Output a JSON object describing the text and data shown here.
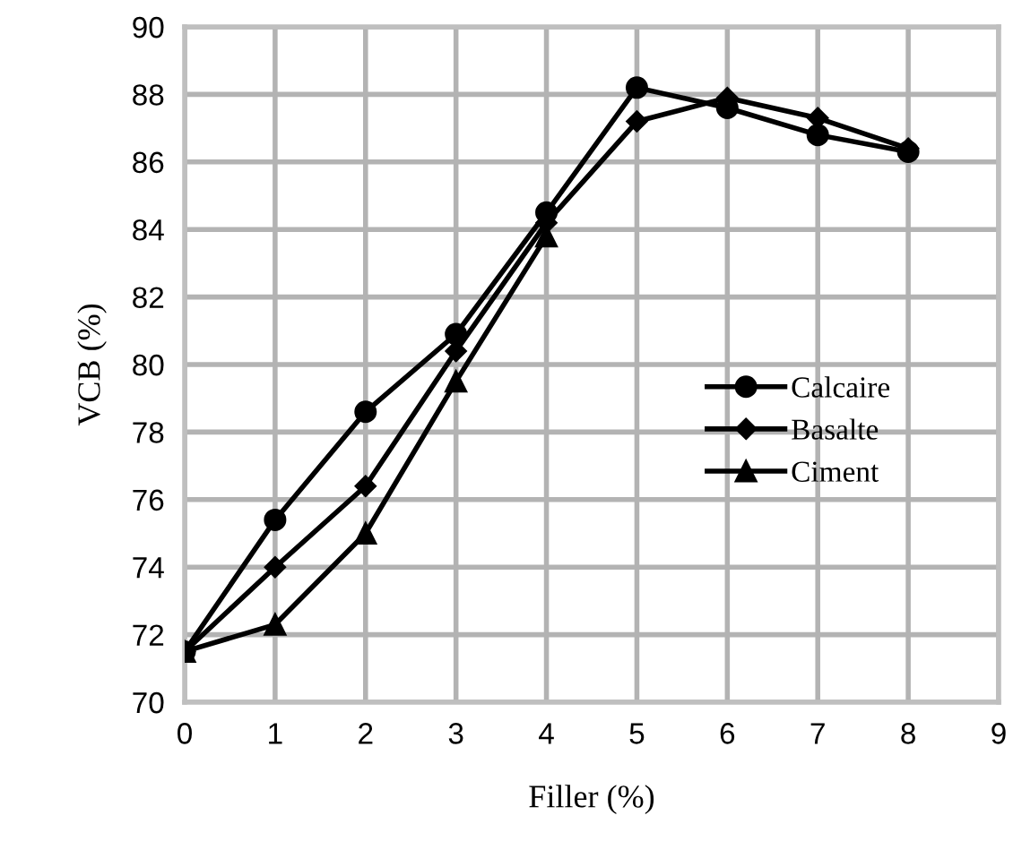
{
  "chart_data": {
    "type": "line",
    "xlabel": "Filler (%)",
    "ylabel": "VCB (%)",
    "x": [
      0,
      1,
      2,
      3,
      4,
      5,
      6,
      7,
      8
    ],
    "series": [
      {
        "name": "Calcaire",
        "color": "#000000",
        "marker": "circle",
        "values": [
          71.5,
          75.4,
          78.6,
          80.9,
          84.5,
          88.2,
          87.6,
          86.8,
          86.3
        ]
      },
      {
        "name": "Basalte",
        "color": "#000000",
        "marker": "diamond",
        "values": [
          71.5,
          74.0,
          76.4,
          80.4,
          84.2,
          87.2,
          87.9,
          87.3,
          86.4
        ]
      },
      {
        "name": "Ciment",
        "color": "#000000",
        "marker": "triangle",
        "values": [
          71.5,
          72.3,
          75.0,
          79.5,
          83.8,
          null,
          null,
          null,
          null
        ]
      }
    ],
    "xlim": [
      0,
      9
    ],
    "xticks": [
      0,
      1,
      2,
      3,
      4,
      5,
      6,
      7,
      8,
      9
    ],
    "ylim": [
      70,
      90
    ],
    "yticks": [
      70,
      72,
      74,
      76,
      78,
      80,
      82,
      84,
      86,
      88,
      90
    ],
    "grid": true,
    "legend": "right",
    "line_style": "solid"
  }
}
